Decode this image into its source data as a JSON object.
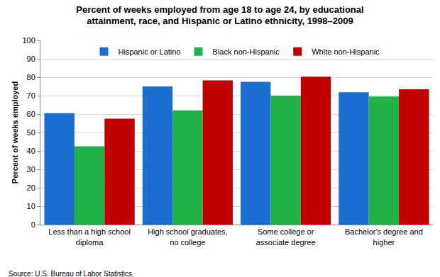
{
  "chart_data": {
    "type": "bar",
    "title": "Percent of weeks employed from age 18 to age 24, by educational\nattainment, race, and Hispanic or Latino ethnicity, 1998–2009",
    "y_label": "Percent of weeks employed",
    "categories": [
      "Less than a high school\ndiploma",
      "High school graduates,\nno college",
      "Some college or\nassociate degree",
      "Bachelor's degree and\nhigher"
    ],
    "series": [
      {
        "name": "Hispanic or Latino",
        "color": "#1b6fd0",
        "values": [
          60.5,
          75.0,
          77.5,
          71.8
        ]
      },
      {
        "name": "Black non-Hispanic",
        "color": "#22b24a",
        "values": [
          42.5,
          62.0,
          70.0,
          69.5
        ]
      },
      {
        "name": "White non-Hispanic",
        "color": "#c00000",
        "values": [
          57.5,
          78.3,
          80.3,
          73.5
        ]
      }
    ],
    "ylim": [
      0,
      100
    ],
    "yticks": [
      0,
      10,
      20,
      30,
      40,
      50,
      60,
      70,
      80,
      90,
      100
    ],
    "grid": true,
    "legend": "top",
    "annotations": [
      "Source: U.S. Bureau of Labor Statistics"
    ]
  }
}
